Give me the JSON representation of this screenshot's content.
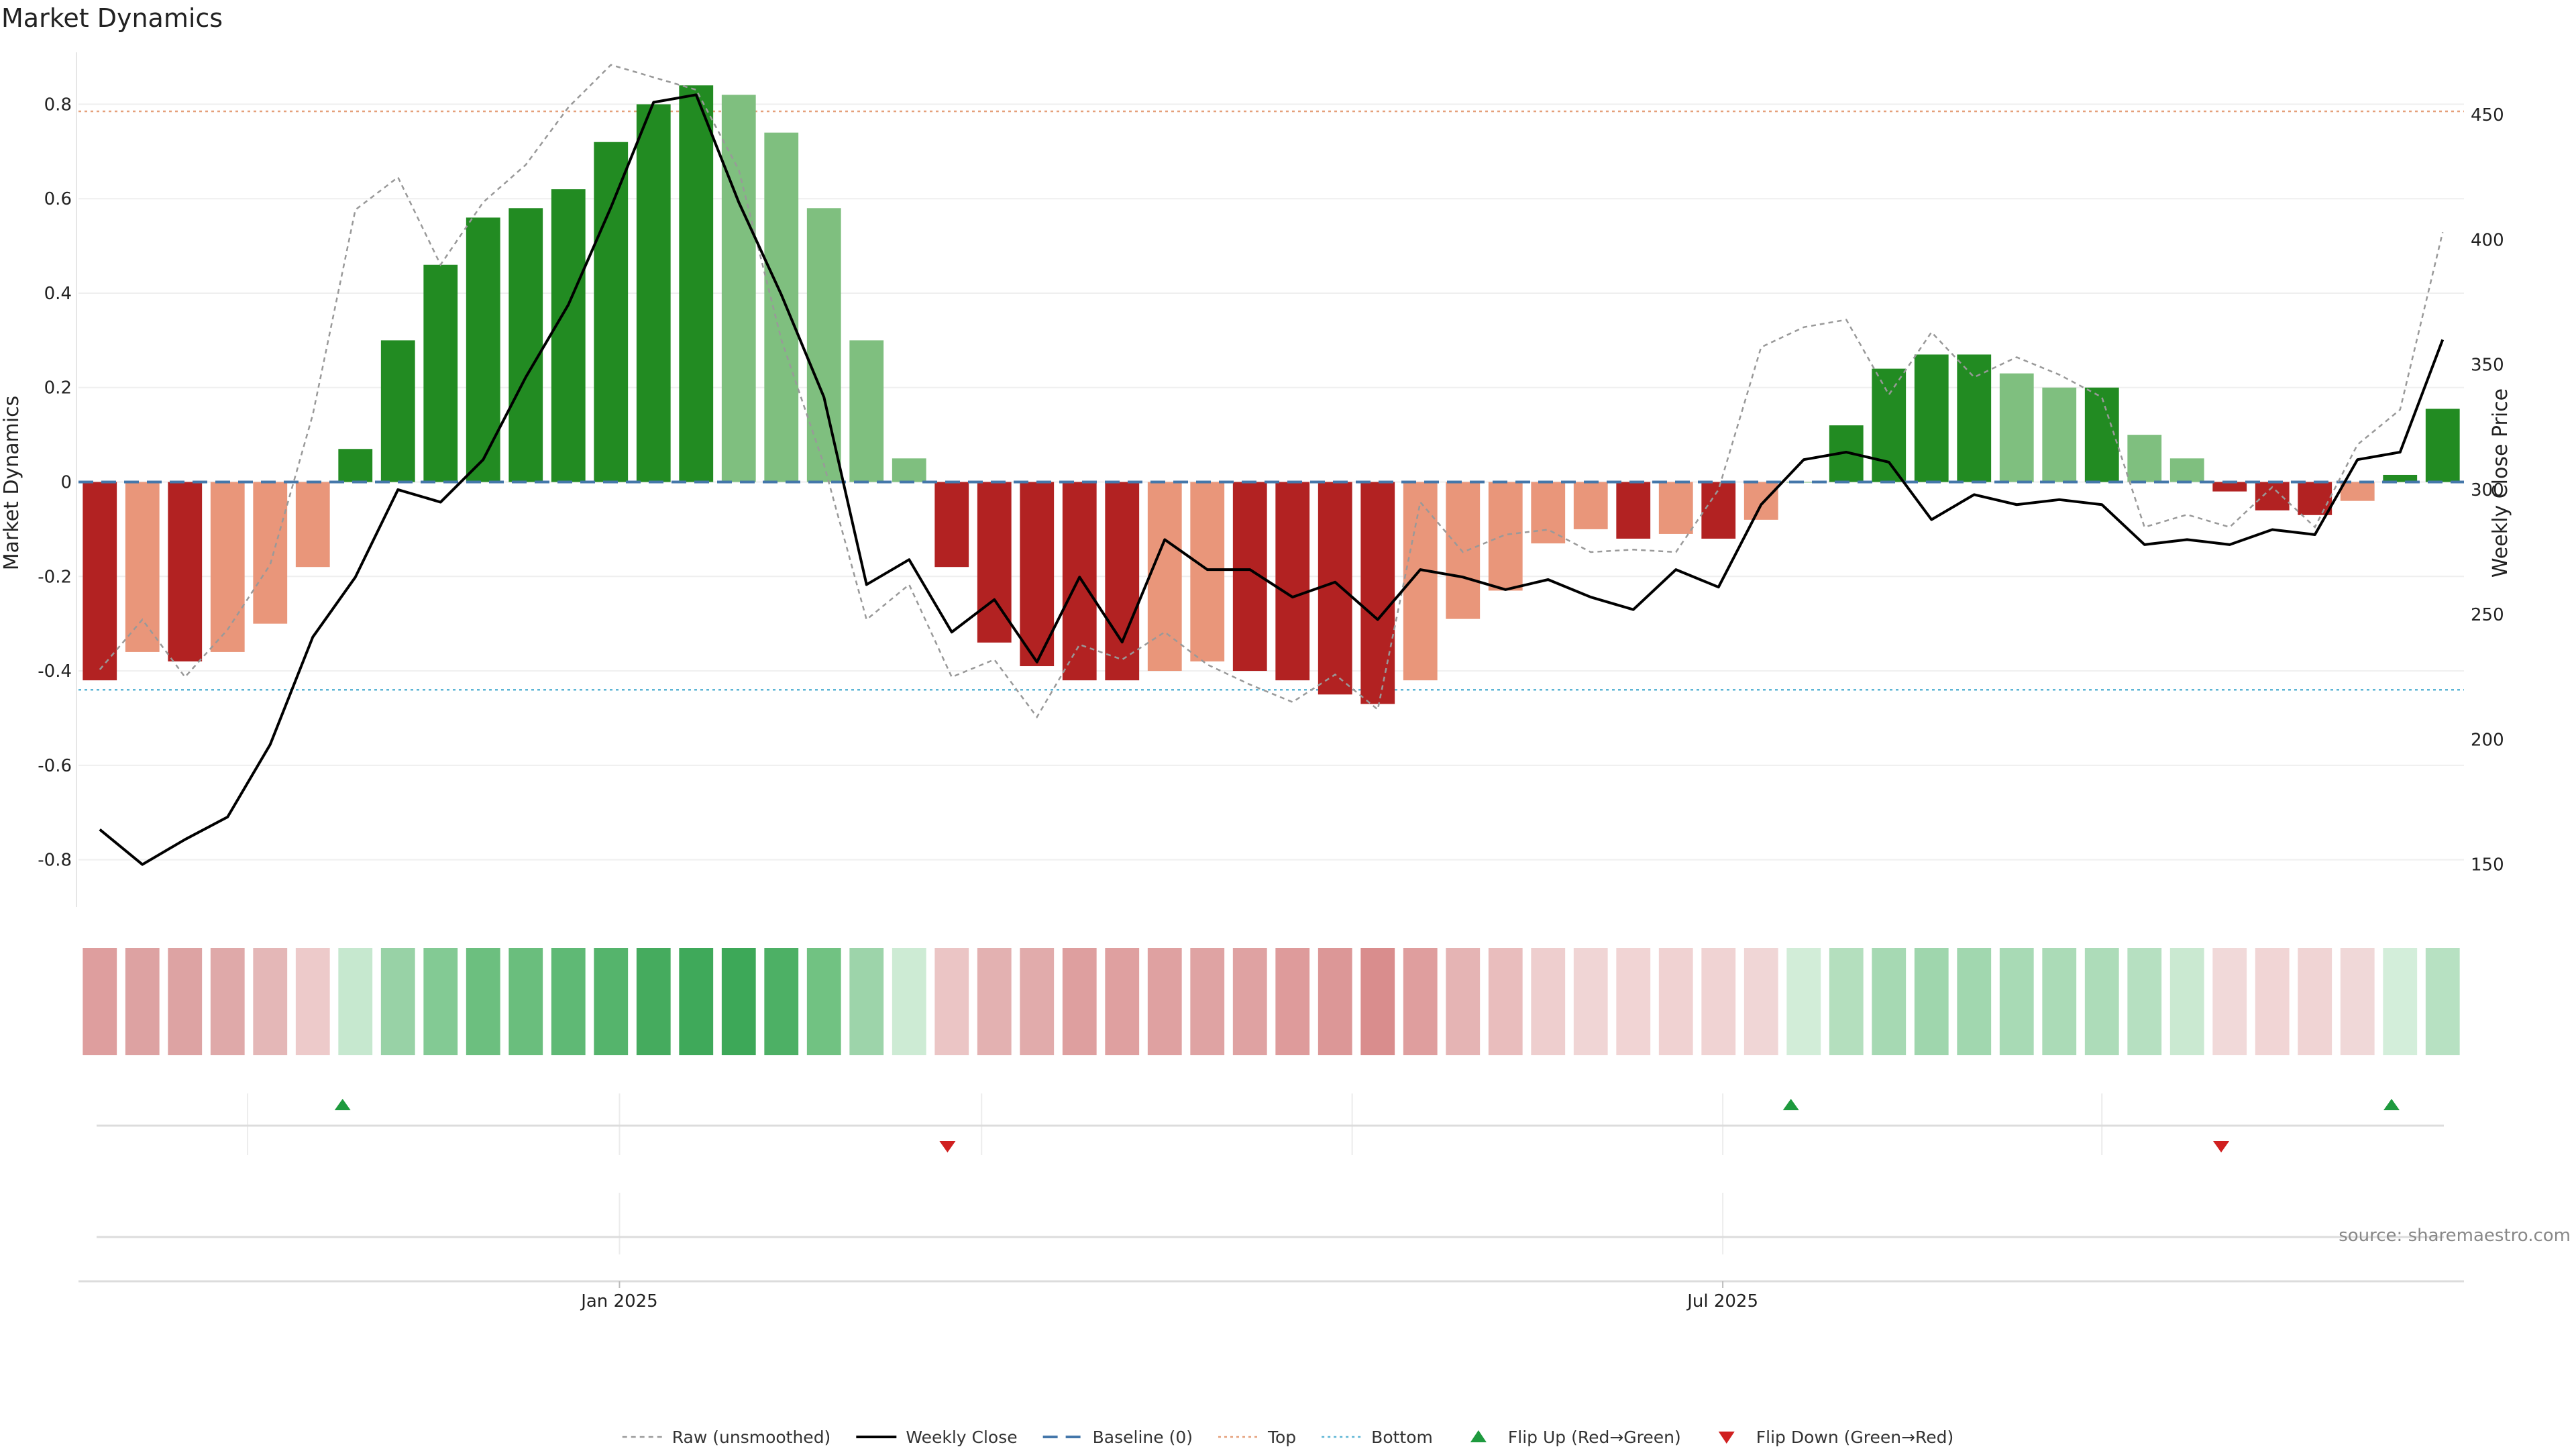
{
  "chart_data": {
    "type": "bar",
    "title": "Market Dynamics",
    "ylabel_left": "Market Dynamics",
    "ylabel_right": "Weekly Close Price",
    "ylim_left": [
      -0.9,
      0.91
    ],
    "ylim_right": [
      133,
      475
    ],
    "left_ticks": [
      "0.8",
      "0.6",
      "0.4",
      "0.2",
      "0",
      "-0.2",
      "-0.4",
      "-0.6",
      "-0.8"
    ],
    "left_tick_values": [
      0.8,
      0.6,
      0.4,
      0.2,
      0,
      -0.2,
      -0.4,
      -0.6,
      -0.8
    ],
    "right_ticks": [
      "450",
      "400",
      "350",
      "300",
      "250",
      "200",
      "150"
    ],
    "right_tick_values": [
      450,
      400,
      350,
      300,
      250,
      200,
      150
    ],
    "x_ticks": [
      {
        "label": "Jan 2025",
        "week": 12.7
      },
      {
        "label": "Jul 2025",
        "week": 38.6
      }
    ],
    "top_level": 0.785,
    "bottom_level": -0.44,
    "baseline": 0,
    "colors": {
      "strong_green": "#228B22",
      "light_green": "#7FBF7F",
      "strong_red": "#B22222",
      "light_red": "#E9967A",
      "close": "#000000",
      "raw": "#999999",
      "baseline": "#4477AA",
      "top": "#E5A07A",
      "bottom": "#5BB5D5",
      "flip_up": "#1E9A3E",
      "flip_down": "#D02020"
    },
    "series": [
      {
        "name": "Market Dynamics",
        "values": [
          -0.42,
          -0.36,
          -0.38,
          -0.36,
          -0.3,
          -0.18,
          0.07,
          0.3,
          0.46,
          0.56,
          0.58,
          0.62,
          0.72,
          0.8,
          0.84,
          0.82,
          0.74,
          0.58,
          0.3,
          0.05,
          -0.18,
          -0.34,
          -0.39,
          -0.42,
          -0.42,
          -0.4,
          -0.38,
          -0.4,
          -0.42,
          -0.45,
          -0.47,
          -0.42,
          -0.29,
          -0.23,
          -0.13,
          -0.1,
          -0.12,
          -0.11,
          -0.12,
          -0.08,
          0,
          0.12,
          0.24,
          0.27,
          0.27,
          0.23,
          0.2,
          0.2,
          0.1,
          0.05,
          -0.02,
          -0.06,
          -0.07,
          -0.04,
          0.015,
          0.155
        ]
      },
      {
        "name": "Weekly Close",
        "values": [
          164,
          150,
          160,
          169,
          198,
          241,
          265,
          300,
          295,
          312,
          345,
          374,
          413,
          455,
          458,
          415,
          378,
          337,
          262,
          272,
          243,
          256,
          231,
          265,
          239,
          280,
          268,
          268,
          257,
          263,
          248,
          268,
          265,
          260,
          264,
          257,
          252,
          268,
          261,
          294,
          312,
          315,
          311,
          288,
          298,
          294,
          296,
          294,
          278,
          280,
          278,
          284,
          282,
          312,
          315,
          360
        ]
      },
      {
        "name": "Raw (unsmoothed)",
        "values": [
          228,
          248,
          225,
          244,
          270,
          330,
          412,
          425,
          390,
          415,
          430,
          453,
          470,
          465,
          460,
          428,
          360,
          310,
          248,
          262,
          225,
          232,
          209,
          238,
          232,
          243,
          230,
          222,
          215,
          226,
          212,
          295,
          275,
          282,
          284,
          275,
          276,
          275,
          300,
          357,
          365,
          368,
          338,
          363,
          345,
          353,
          346,
          337,
          285,
          290,
          285,
          301,
          285,
          318,
          332,
          403
        ]
      }
    ],
    "bar_styles": [
      "sr",
      "lr",
      "sr",
      "lr",
      "lr",
      "lr",
      "sg",
      "sg",
      "sg",
      "sg",
      "sg",
      "sg",
      "sg",
      "sg",
      "sg",
      "lg",
      "lg",
      "lg",
      "lg",
      "lg",
      "sr",
      "sr",
      "sr",
      "sr",
      "sr",
      "lr",
      "lr",
      "sr",
      "sr",
      "sr",
      "sr",
      "lr",
      "lr",
      "lr",
      "lr",
      "lr",
      "sr",
      "lr",
      "sr",
      "lr",
      "lg",
      "sg",
      "sg",
      "sg",
      "sg",
      "lg",
      "lg",
      "sg",
      "lg",
      "lg",
      "sr",
      "sr",
      "sr",
      "lr",
      "sg",
      "sg"
    ],
    "heat_colors": [
      "#DE9E9E",
      "#DDA2A2",
      "#DDA3A3",
      "#DFA9A9",
      "#E4B7B7",
      "#EDCACA",
      "#C6E8CF",
      "#98D2A6",
      "#83CA94",
      "#6CBF7F",
      "#6ABE7D",
      "#5FB975",
      "#55B46C",
      "#45AB5E",
      "#3FA95A",
      "#3DA858",
      "#4DB065",
      "#71C282",
      "#9DD4AA",
      "#CDEBD4",
      "#EBC5C5",
      "#E3B1B1",
      "#E1ABAB",
      "#DE9F9F",
      "#DFA0A0",
      "#DFA1A1",
      "#DFA3A3",
      "#DFA2A2",
      "#DE9B9B",
      "#DC9797",
      "#D98D8D",
      "#DF9E9E",
      "#E5B4B4",
      "#E9BDBD",
      "#EECECE",
      "#F0D5D5",
      "#F1D4D4",
      "#F0D2D2",
      "#F0D3D3",
      "#F0D6D6",
      "#D2EDD8",
      "#B4DFBE",
      "#A6D9B3",
      "#9FD6AD",
      "#A1D7AF",
      "#A8DAB5",
      "#ABDBB7",
      "#ADDCB9",
      "#B6E0C1",
      "#CAE9D1",
      "#F1D9D9",
      "#F1D5D5",
      "#F0D4D4",
      "#F0D8D8",
      "#D3EEDA",
      "#B7E1C2"
    ],
    "flips": [
      {
        "type": "up",
        "week": 6.2
      },
      {
        "type": "down",
        "week": 20.4
      },
      {
        "type": "up",
        "week": 40.2
      },
      {
        "type": "down",
        "week": 50.3
      },
      {
        "type": "up",
        "week": 54.3
      }
    ],
    "legend": [
      {
        "label": "Raw (unsmoothed)",
        "kind": "raw"
      },
      {
        "label": "Weekly Close",
        "kind": "close"
      },
      {
        "label": "Baseline (0)",
        "kind": "baseline"
      },
      {
        "label": "Top",
        "kind": "top"
      },
      {
        "label": "Bottom",
        "kind": "bottom"
      },
      {
        "label": "Flip Up (Red→Green)",
        "kind": "flip_up"
      },
      {
        "label": "Flip Down (Green→Red)",
        "kind": "flip_down"
      }
    ],
    "grid": true,
    "legend_position": "bottom-center"
  },
  "source": "source: sharemaestro.com"
}
